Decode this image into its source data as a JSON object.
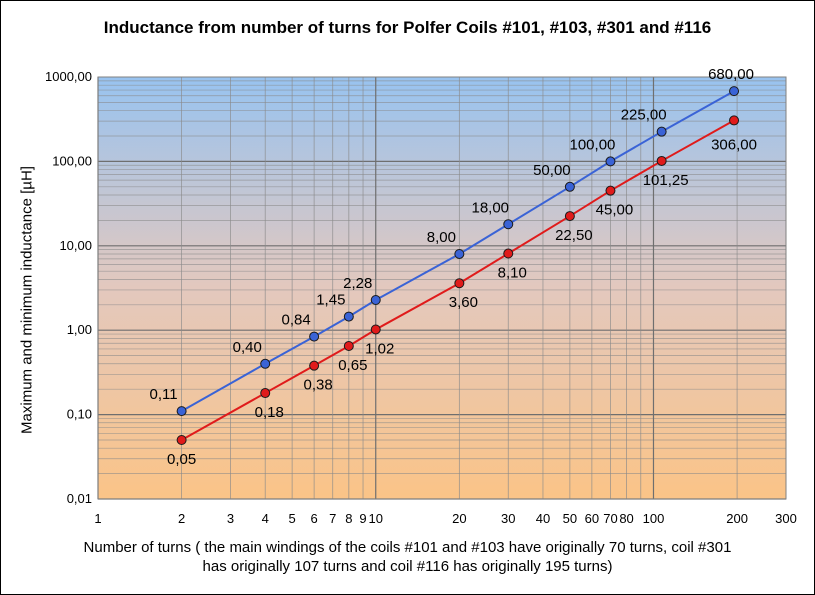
{
  "chart_data": {
    "type": "line",
    "title": "Inductance from number of turns for Polfer Coils #101, #103, #301 and #116",
    "ylabel": "Maximum and minimum inductance [µH]",
    "xlabel_lines": [
      "Number of turns ( the main windings of the coils #101 and #103 have originally 70 turns, coil #301",
      "has originally 107 turns and coil #116 has originally 195 turns)"
    ],
    "x_scale": "log",
    "y_scale": "log",
    "xlim": [
      1,
      300
    ],
    "ylim": [
      0.01,
      1000
    ],
    "x_ticks": [
      {
        "value": 1,
        "label": "1"
      },
      {
        "value": 2,
        "label": "2"
      },
      {
        "value": 3,
        "label": "3"
      },
      {
        "value": 4,
        "label": "4"
      },
      {
        "value": 5,
        "label": "5"
      },
      {
        "value": 6,
        "label": "6"
      },
      {
        "value": 7,
        "label": "7"
      },
      {
        "value": 8,
        "label": "8"
      },
      {
        "value": 9,
        "label": "9"
      },
      {
        "value": 10,
        "label": "10"
      },
      {
        "value": 20,
        "label": "20"
      },
      {
        "value": 30,
        "label": "30"
      },
      {
        "value": 40,
        "label": "40"
      },
      {
        "value": 50,
        "label": "50"
      },
      {
        "value": 60,
        "label": "60"
      },
      {
        "value": 70,
        "label": "70"
      },
      {
        "value": 80,
        "label": "80"
      },
      {
        "value": 100,
        "label": "100"
      },
      {
        "value": 200,
        "label": "200"
      },
      {
        "value": 300,
        "label": "300"
      }
    ],
    "y_ticks": [
      {
        "value": 0.01,
        "label": "0,01"
      },
      {
        "value": 0.1,
        "label": "0,10"
      },
      {
        "value": 1,
        "label": "1,00"
      },
      {
        "value": 10,
        "label": "10,00"
      },
      {
        "value": 100,
        "label": "100,00"
      },
      {
        "value": 1000,
        "label": "1000,00"
      }
    ],
    "grid": true,
    "legend": "none",
    "series": [
      {
        "color": "#3a63d6",
        "points": [
          {
            "x": 2,
            "y": 0.11,
            "label": "0,11"
          },
          {
            "x": 4,
            "y": 0.4,
            "label": "0,40"
          },
          {
            "x": 6,
            "y": 0.84,
            "label": "0,84"
          },
          {
            "x": 8,
            "y": 1.45,
            "label": "1,45"
          },
          {
            "x": 10,
            "y": 2.28,
            "label": "2,28"
          },
          {
            "x": 20,
            "y": 8.0,
            "label": "8,00"
          },
          {
            "x": 30,
            "y": 18.0,
            "label": "18,00"
          },
          {
            "x": 50,
            "y": 50.0,
            "label": "50,00"
          },
          {
            "x": 70,
            "y": 100.0,
            "label": "100,00"
          },
          {
            "x": 107,
            "y": 225.0,
            "label": "225,00"
          },
          {
            "x": 195,
            "y": 680.0,
            "label": "680,00"
          }
        ]
      },
      {
        "color": "#e01b1b",
        "points": [
          {
            "x": 2,
            "y": 0.05,
            "label": "0,05"
          },
          {
            "x": 4,
            "y": 0.18,
            "label": "0,18"
          },
          {
            "x": 6,
            "y": 0.38,
            "label": "0,38"
          },
          {
            "x": 8,
            "y": 0.65,
            "label": "0,65"
          },
          {
            "x": 10,
            "y": 1.02,
            "label": "1,02"
          },
          {
            "x": 20,
            "y": 3.6,
            "label": "3,60"
          },
          {
            "x": 30,
            "y": 8.1,
            "label": "8,10"
          },
          {
            "x": 50,
            "y": 22.5,
            "label": "22,50"
          },
          {
            "x": 70,
            "y": 45.0,
            "label": "45,00"
          },
          {
            "x": 107,
            "y": 101.25,
            "label": "101,25"
          },
          {
            "x": 195,
            "y": 306.0,
            "label": "306,00"
          }
        ]
      }
    ]
  }
}
